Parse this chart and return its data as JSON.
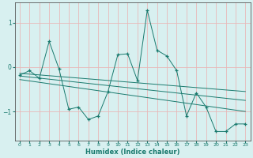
{
  "xlabel": "Humidex (Indice chaleur)",
  "background_color": "#d8f0f0",
  "grid_color": "#e8b8b8",
  "line_color": "#1a7a6e",
  "xlim": [
    -0.5,
    23.5
  ],
  "ylim": [
    -1.65,
    1.45
  ],
  "yticks": [
    -1,
    0,
    1
  ],
  "xticks": [
    0,
    1,
    2,
    3,
    4,
    5,
    6,
    7,
    8,
    9,
    10,
    11,
    12,
    13,
    14,
    15,
    16,
    17,
    18,
    19,
    20,
    21,
    22,
    23
  ],
  "series": [
    {
      "x": [
        0,
        1,
        2,
        3,
        4,
        5,
        6,
        7,
        8,
        9,
        10,
        11,
        12,
        13,
        14,
        15,
        16,
        17,
        18,
        19,
        20,
        21,
        22,
        23
      ],
      "y": [
        -0.18,
        -0.08,
        -0.25,
        0.58,
        -0.04,
        -0.95,
        -0.9,
        -1.18,
        -1.1,
        -0.55,
        0.28,
        0.3,
        -0.3,
        1.28,
        0.38,
        0.25,
        -0.08,
        -1.1,
        -0.58,
        -0.9,
        -1.45,
        -1.45,
        -1.28,
        -1.28
      ]
    },
    {
      "x": [
        0,
        23
      ],
      "y": [
        -0.2,
        -0.75
      ]
    },
    {
      "x": [
        0,
        23
      ],
      "y": [
        -0.28,
        -1.0
      ]
    },
    {
      "x": [
        0,
        23
      ],
      "y": [
        -0.14,
        -0.55
      ]
    }
  ]
}
